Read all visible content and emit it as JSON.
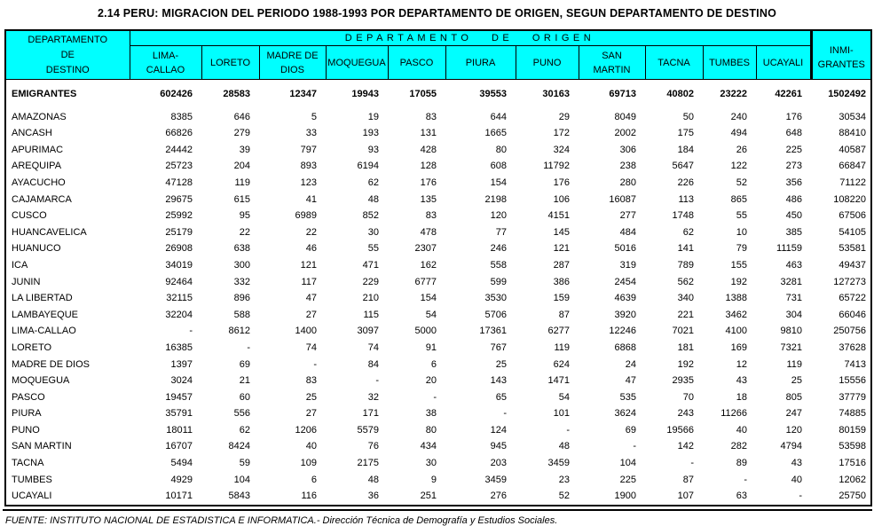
{
  "title": "2.14  PERU: MIGRACION DEL PERIODO 1988-1993 POR DEPARTAMENTO DE ORIGEN, SEGUN DEPARTAMENTO DE DESTINO",
  "colors": {
    "header_bg": "#00FFFF",
    "border": "#000000",
    "text": "#000000"
  },
  "header": {
    "dest_lines": [
      "DEPARTAMENTO",
      "DE",
      "DESTINO"
    ],
    "origin_label": "DEPARTAMENTO DE ORIGEN",
    "origin_columns": [
      [
        "LIMA-",
        "CALLAO"
      ],
      [
        "LORETO"
      ],
      [
        "MADRE DE",
        "DIOS"
      ],
      [
        "MOQUEGUA"
      ],
      [
        "PASCO"
      ],
      [
        "PIURA"
      ],
      [
        "PUNO"
      ],
      [
        "SAN",
        "MARTIN"
      ],
      [
        "TACNA"
      ],
      [
        "TUMBES"
      ],
      [
        "UCAYALI"
      ]
    ],
    "total_lines": [
      "INMI-",
      "GRANTES"
    ]
  },
  "table": {
    "rows": [
      {
        "label": "EMIGRANTES",
        "values": [
          "602426",
          "28583",
          "12347",
          "19943",
          "17055",
          "39553",
          "30163",
          "69713",
          "40802",
          "23222",
          "42261",
          "1502492"
        ]
      },
      {
        "label": "AMAZONAS",
        "values": [
          "8385",
          "646",
          "5",
          "19",
          "83",
          "644",
          "29",
          "8049",
          "50",
          "240",
          "176",
          "30534"
        ]
      },
      {
        "label": "ANCASH",
        "values": [
          "66826",
          "279",
          "33",
          "193",
          "131",
          "1665",
          "172",
          "2002",
          "175",
          "494",
          "648",
          "88410"
        ]
      },
      {
        "label": "APURIMAC",
        "values": [
          "24442",
          "39",
          "797",
          "93",
          "428",
          "80",
          "324",
          "306",
          "184",
          "26",
          "225",
          "40587"
        ]
      },
      {
        "label": "AREQUIPA",
        "values": [
          "25723",
          "204",
          "893",
          "6194",
          "128",
          "608",
          "11792",
          "238",
          "5647",
          "122",
          "273",
          "66847"
        ]
      },
      {
        "label": "AYACUCHO",
        "values": [
          "47128",
          "119",
          "123",
          "62",
          "176",
          "154",
          "176",
          "280",
          "226",
          "52",
          "356",
          "71122"
        ]
      },
      {
        "label": "CAJAMARCA",
        "values": [
          "29675",
          "615",
          "41",
          "48",
          "135",
          "2198",
          "106",
          "16087",
          "113",
          "865",
          "486",
          "108220"
        ]
      },
      {
        "label": "CUSCO",
        "values": [
          "25992",
          "95",
          "6989",
          "852",
          "83",
          "120",
          "4151",
          "277",
          "1748",
          "55",
          "450",
          "67506"
        ]
      },
      {
        "label": "HUANCAVELICA",
        "values": [
          "25179",
          "22",
          "22",
          "30",
          "478",
          "77",
          "145",
          "484",
          "62",
          "10",
          "385",
          "54105"
        ]
      },
      {
        "label": "HUANUCO",
        "values": [
          "26908",
          "638",
          "46",
          "55",
          "2307",
          "246",
          "121",
          "5016",
          "141",
          "79",
          "11159",
          "53581"
        ]
      },
      {
        "label": "ICA",
        "values": [
          "34019",
          "300",
          "121",
          "471",
          "162",
          "558",
          "287",
          "319",
          "789",
          "155",
          "463",
          "49437"
        ]
      },
      {
        "label": "JUNIN",
        "values": [
          "92464",
          "332",
          "117",
          "229",
          "6777",
          "599",
          "386",
          "2454",
          "562",
          "192",
          "3281",
          "127273"
        ]
      },
      {
        "label": "LA LIBERTAD",
        "values": [
          "32115",
          "896",
          "47",
          "210",
          "154",
          "3530",
          "159",
          "4639",
          "340",
          "1388",
          "731",
          "65722"
        ]
      },
      {
        "label": "LAMBAYEQUE",
        "values": [
          "32204",
          "588",
          "27",
          "115",
          "54",
          "5706",
          "87",
          "3920",
          "221",
          "3462",
          "304",
          "66046"
        ]
      },
      {
        "label": "LIMA-CALLAO",
        "values": [
          "-",
          "8612",
          "1400",
          "3097",
          "5000",
          "17361",
          "6277",
          "12246",
          "7021",
          "4100",
          "9810",
          "250756"
        ]
      },
      {
        "label": "LORETO",
        "values": [
          "16385",
          "-",
          "74",
          "74",
          "91",
          "767",
          "119",
          "6868",
          "181",
          "169",
          "7321",
          "37628"
        ]
      },
      {
        "label": "MADRE DE DIOS",
        "values": [
          "1397",
          "69",
          "-",
          "84",
          "6",
          "25",
          "624",
          "24",
          "192",
          "12",
          "119",
          "7413"
        ]
      },
      {
        "label": "MOQUEGUA",
        "values": [
          "3024",
          "21",
          "83",
          "-",
          "20",
          "143",
          "1471",
          "47",
          "2935",
          "43",
          "25",
          "15556"
        ]
      },
      {
        "label": "PASCO",
        "values": [
          "19457",
          "60",
          "25",
          "32",
          "-",
          "65",
          "54",
          "535",
          "70",
          "18",
          "805",
          "37779"
        ]
      },
      {
        "label": "PIURA",
        "values": [
          "35791",
          "556",
          "27",
          "171",
          "38",
          "-",
          "101",
          "3624",
          "243",
          "11266",
          "247",
          "74885"
        ]
      },
      {
        "label": "PUNO",
        "values": [
          "18011",
          "62",
          "1206",
          "5579",
          "80",
          "124",
          "-",
          "69",
          "19566",
          "40",
          "120",
          "80159"
        ]
      },
      {
        "label": "SAN MARTIN",
        "values": [
          "16707",
          "8424",
          "40",
          "76",
          "434",
          "945",
          "48",
          "-",
          "142",
          "282",
          "4794",
          "53598"
        ]
      },
      {
        "label": "TACNA",
        "values": [
          "5494",
          "59",
          "109",
          "2175",
          "30",
          "203",
          "3459",
          "104",
          "-",
          "89",
          "43",
          "17516"
        ]
      },
      {
        "label": "TUMBES",
        "values": [
          "4929",
          "104",
          "6",
          "48",
          "9",
          "3459",
          "23",
          "225",
          "87",
          "-",
          "40",
          "12062"
        ]
      },
      {
        "label": "UCAYALI",
        "values": [
          "10171",
          "5843",
          "116",
          "36",
          "251",
          "276",
          "52",
          "1900",
          "107",
          "63",
          "-",
          "25750"
        ]
      }
    ]
  },
  "footer": {
    "source": "FUENTE: INSTITUTO NACIONAL DE ESTADISTICA E INFORMATICA.- Dirección Técnica de Demografía y Estudios Sociales."
  }
}
